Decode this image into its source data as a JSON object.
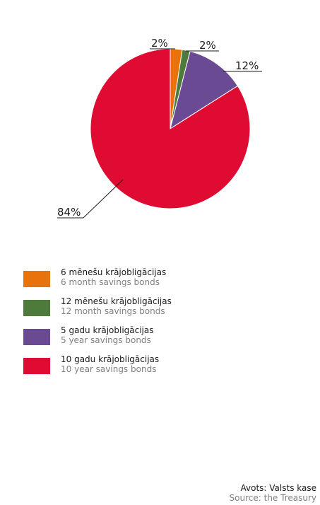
{
  "chart_data": {
    "type": "pie",
    "title": "",
    "start_angle_deg": 0,
    "direction": "clockwise",
    "series": [
      {
        "name": "6 mēnešu krājobligācijas",
        "name_en": "6 month savings bonds",
        "value": 2.4,
        "label": "2%",
        "color": "#e8720c"
      },
      {
        "name": "12 mēnešu krājobligācijas",
        "name_en": "12 month savings bonds",
        "value": 1.6,
        "label": "2%",
        "color": "#4e7a3b"
      },
      {
        "name": "5 gadu krājobligācijas",
        "name_en": "5 year savings bonds",
        "value": 12,
        "label": "12%",
        "color": "#6a4b93"
      },
      {
        "name": "10 gadu krājobligācijas",
        "name_en": "10 year savings bonds",
        "value": 84,
        "label": "84%",
        "color": "#e00b32"
      }
    ],
    "legend_position": "bottom-left"
  },
  "source": {
    "lv": "Avots: Valsts kase",
    "en": "Source: the Treasury"
  }
}
